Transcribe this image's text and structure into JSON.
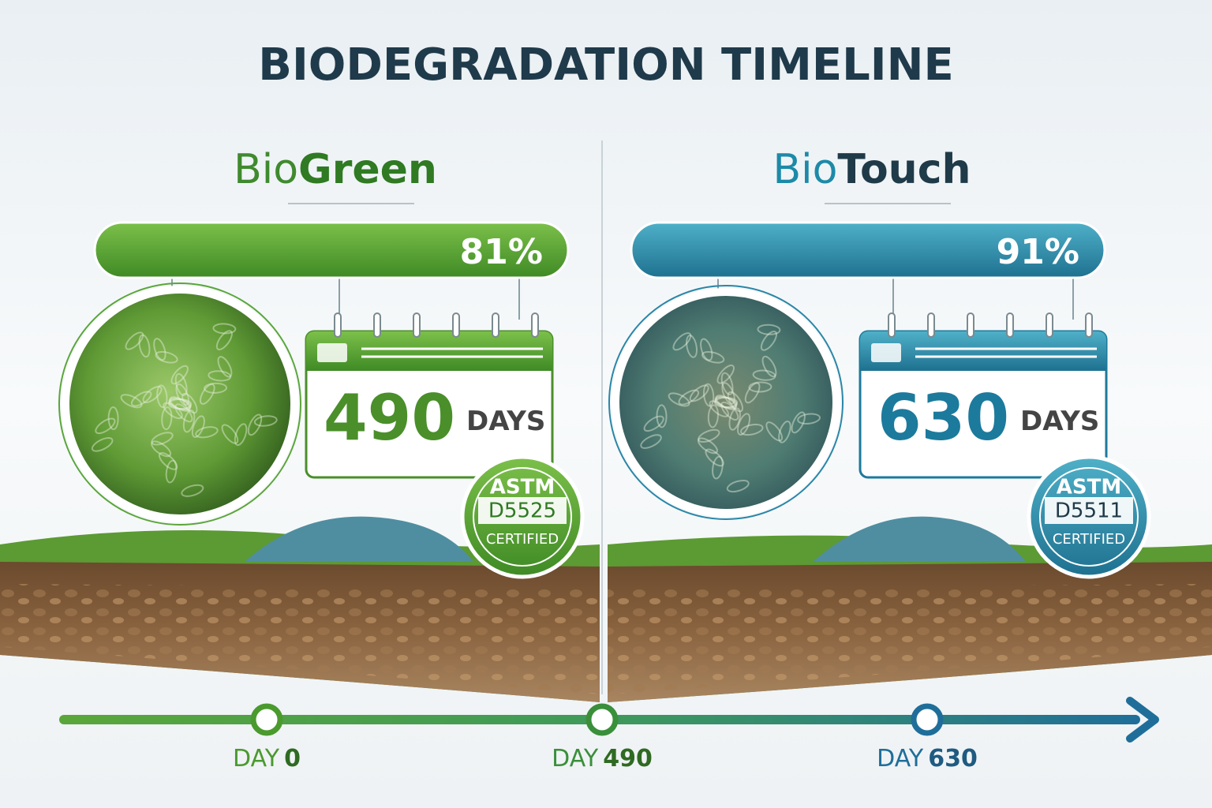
{
  "title": "BIODEGRADATION TIMELINE",
  "panels": [
    {
      "name_prefix": "Bio",
      "name_suffix": "Green",
      "percent": "81%",
      "duration": "490",
      "duration_unit": "DAYS",
      "badge": {
        "standard": "ASTM",
        "code": "D5525",
        "status": "CERTIFIED"
      }
    },
    {
      "name_prefix": "Bio",
      "name_suffix": "Touch",
      "percent": "91%",
      "duration": "630",
      "duration_unit": "DAYS",
      "badge": {
        "standard": "ASTM",
        "code": "D5511",
        "status": "CERTIFIED"
      }
    }
  ],
  "timeline": [
    {
      "prefix": "DAY",
      "value": "0"
    },
    {
      "prefix": "DAY",
      "value": "490"
    },
    {
      "prefix": "DAY",
      "value": "630"
    }
  ]
}
